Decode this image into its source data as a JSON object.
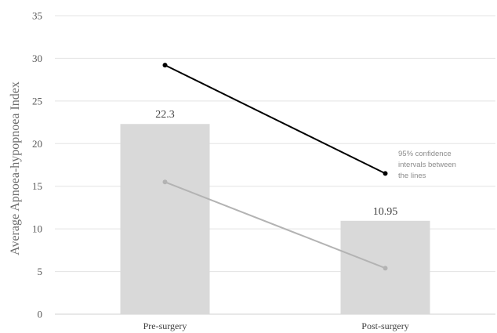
{
  "chart_data": {
    "type": "bar",
    "categories": [
      "Pre-surgery",
      "Post-surgery"
    ],
    "values": [
      22.3,
      10.95
    ],
    "data_labels": [
      "22.3",
      "10.95"
    ],
    "title": "",
    "xlabel": "",
    "ylabel": "Average Apnoea-hypopnoea Index",
    "ylim": [
      0,
      35
    ],
    "yticks": [
      0,
      5,
      10,
      15,
      20,
      25,
      30,
      35
    ],
    "grid": true,
    "bar_color": "#d9d9d9",
    "lines": [
      {
        "values": [
          29.2,
          16.5
        ],
        "color": "#000000"
      },
      {
        "values": [
          15.5,
          5.4
        ],
        "color": "#b3b3b3"
      }
    ],
    "annotation": [
      "95% confidence",
      "intervals between",
      "the lines"
    ]
  }
}
